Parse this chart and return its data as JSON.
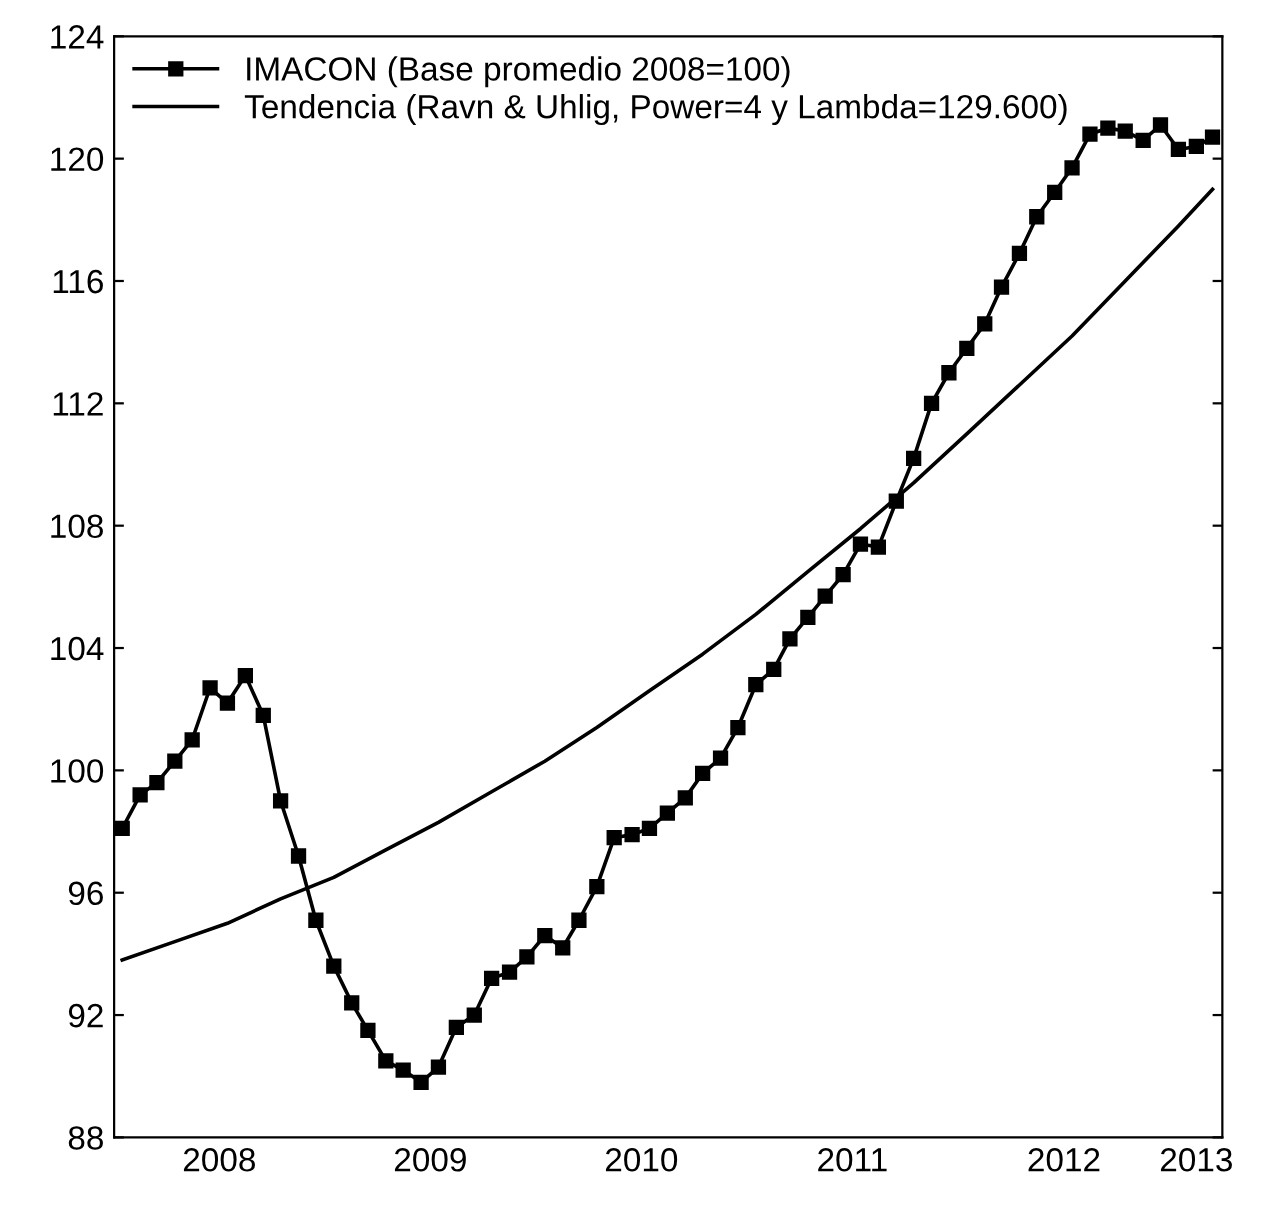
{
  "chart_data": {
    "type": "line",
    "x": [
      "2008-01-15",
      "2008-02-15",
      "2008-03-15",
      "2008-04-15",
      "2008-05-15",
      "2008-06-15",
      "2008-07-15",
      "2008-08-15",
      "2008-09-15",
      "2008-10-15",
      "2008-11-15",
      "2008-12-15",
      "2009-01-15",
      "2009-02-15",
      "2009-03-15",
      "2009-04-15",
      "2009-05-15",
      "2009-06-15",
      "2009-07-15",
      "2009-08-15",
      "2009-09-15",
      "2009-10-15",
      "2009-11-15",
      "2009-12-15",
      "2010-01-15",
      "2010-02-15",
      "2010-03-15",
      "2010-04-15",
      "2010-05-15",
      "2010-06-15",
      "2010-07-15",
      "2010-08-15",
      "2010-09-15",
      "2010-10-15",
      "2010-11-15",
      "2010-12-15",
      "2011-01-15",
      "2011-02-15",
      "2011-03-15",
      "2011-04-15",
      "2011-05-15",
      "2011-06-15",
      "2011-07-15",
      "2011-08-15",
      "2011-09-15",
      "2011-10-15",
      "2011-11-15",
      "2011-12-15",
      "2012-01-15",
      "2012-02-15",
      "2012-03-15",
      "2012-04-15",
      "2012-05-15",
      "2012-06-15",
      "2012-07-15",
      "2012-08-15",
      "2012-09-15",
      "2012-10-15",
      "2012-11-15",
      "2012-12-15",
      "2013-01-15",
      "2013-02-15",
      "2013-03-15"
    ],
    "series": [
      {
        "name": "IMACON (Base promedio 2008=100)",
        "color": "#000000",
        "marker": "square",
        "values": [
          98.1,
          99.2,
          99.6,
          100.3,
          101.0,
          102.7,
          102.2,
          103.1,
          101.8,
          99.0,
          97.2,
          95.1,
          93.6,
          92.4,
          91.5,
          90.5,
          90.2,
          89.8,
          90.3,
          91.6,
          92.0,
          93.2,
          93.4,
          93.9,
          94.6,
          94.2,
          95.1,
          96.2,
          97.8,
          97.9,
          98.1,
          98.6,
          99.1,
          99.9,
          100.4,
          101.4,
          102.8,
          103.3,
          104.3,
          105.0,
          105.7,
          106.4,
          107.4,
          107.3,
          108.8,
          110.2,
          112.0,
          113.0,
          113.8,
          114.6,
          115.8,
          116.9,
          118.1,
          118.9,
          119.7,
          120.8,
          121.0,
          120.9,
          120.6,
          121.1,
          120.3,
          120.4,
          120.7
        ]
      },
      {
        "name": "Tendencia (Ravn & Uhlig, Power=4 y Lambda=129.600)",
        "color": "#000000",
        "marker": "none",
        "x": [
          "2008-01-15",
          "2008-04-15",
          "2008-07-15",
          "2008-10-15",
          "2009-01-15",
          "2009-04-15",
          "2009-07-15",
          "2009-10-15",
          "2010-01-15",
          "2010-04-15",
          "2010-07-15",
          "2010-10-15",
          "2011-01-15",
          "2011-04-15",
          "2011-07-15",
          "2011-10-15",
          "2012-01-15",
          "2012-04-15",
          "2012-07-15",
          "2012-10-15",
          "2013-01-15",
          "2013-03-15"
        ],
        "values": [
          93.8,
          94.4,
          95.0,
          95.8,
          96.5,
          97.4,
          98.3,
          99.3,
          100.3,
          101.4,
          102.6,
          103.8,
          105.1,
          106.5,
          107.9,
          109.4,
          111.0,
          112.6,
          114.2,
          116.0,
          117.8,
          119.0
        ]
      }
    ],
    "xlim": [
      "2008-01-01",
      "2013-04-01"
    ],
    "xticks": [
      {
        "value": "2008-07-01",
        "label": "2008"
      },
      {
        "value": "2009-07-01",
        "label": "2009"
      },
      {
        "value": "2010-07-01",
        "label": "2010"
      },
      {
        "value": "2011-07-01",
        "label": "2011"
      },
      {
        "value": "2012-07-01",
        "label": "2012"
      },
      {
        "value": "2013-02-15",
        "label": "2013"
      }
    ],
    "ylim": [
      88,
      124
    ],
    "yticks": [
      88,
      92,
      96,
      100,
      104,
      108,
      112,
      116,
      120,
      124
    ],
    "grid": false,
    "legend": "top left",
    "line_style": "solid"
  }
}
